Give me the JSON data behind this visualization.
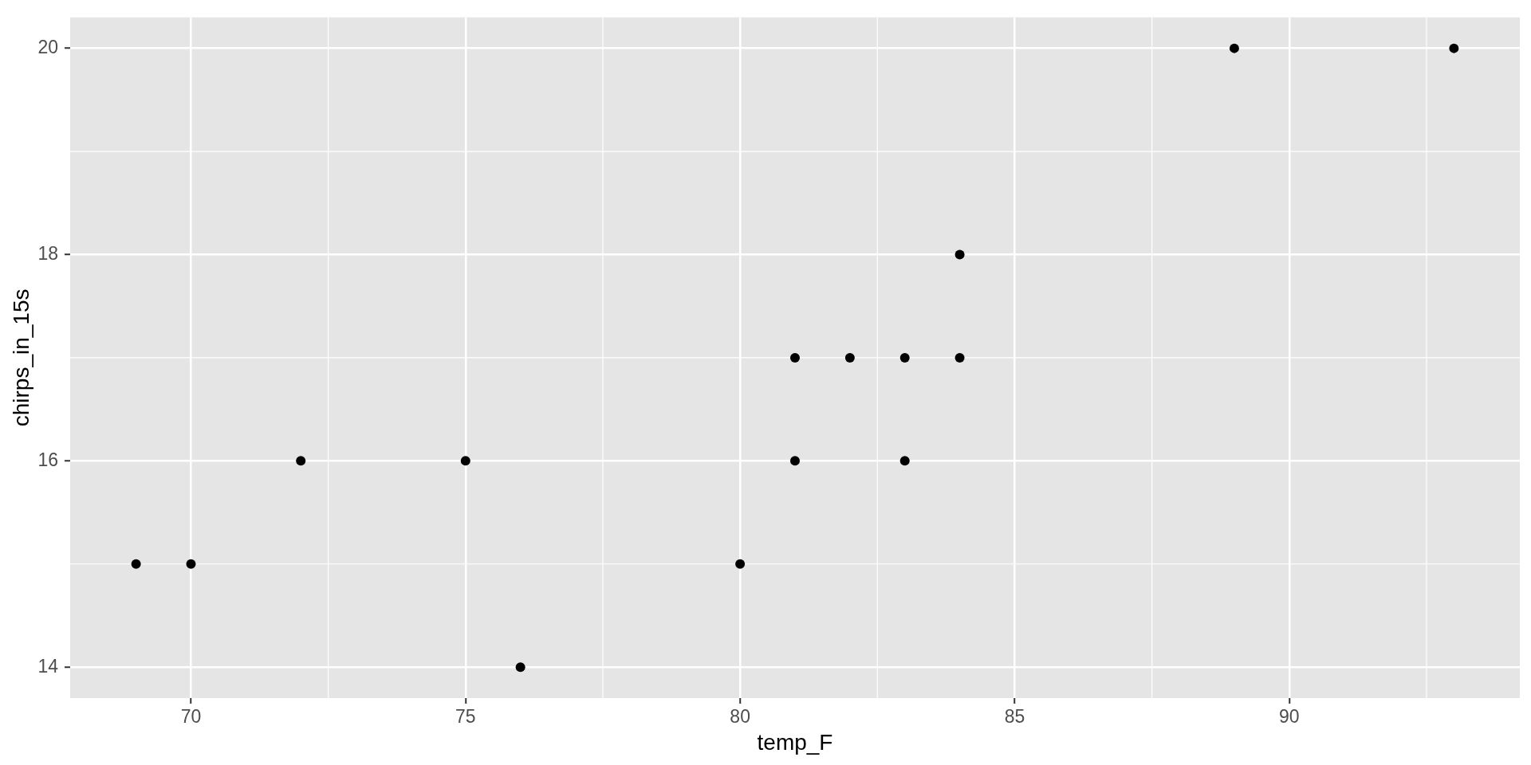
{
  "chart_data": {
    "type": "scatter",
    "xlabel": "temp_F",
    "ylabel": "chirps_in_15s",
    "x": [
      69,
      70,
      72,
      75,
      76,
      80,
      81,
      81,
      82,
      83,
      83,
      84,
      84,
      89,
      93
    ],
    "values": [
      15,
      15,
      16,
      16,
      14,
      15,
      17,
      16,
      17,
      17,
      16,
      18,
      17,
      20,
      20
    ],
    "color": "#000000",
    "xlim": [
      67.8,
      94.2
    ],
    "ylim": [
      13.7,
      20.3
    ],
    "xticks": [
      70,
      75,
      80,
      85,
      90
    ],
    "yticks": [
      14,
      16,
      18,
      20
    ],
    "grid": true,
    "marker": "circle"
  }
}
